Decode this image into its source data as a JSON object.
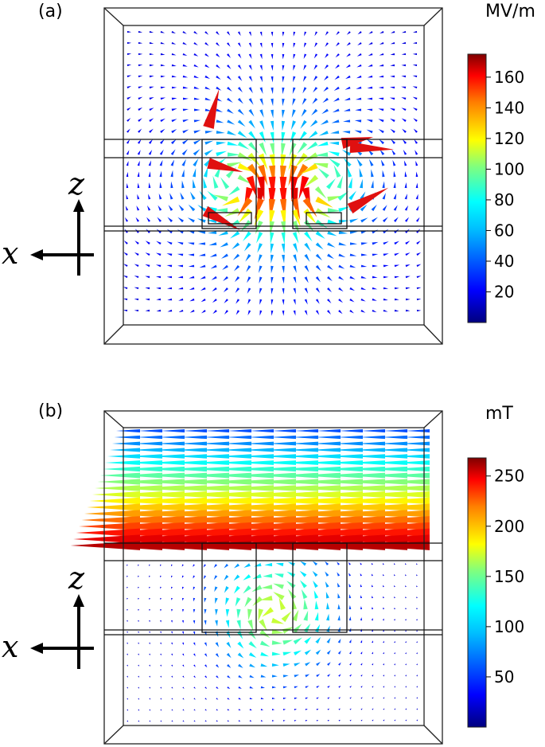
{
  "panel_a": {
    "label": "(a)",
    "unit": "MV/m",
    "colorbar_ticks": [
      "160",
      "140",
      "120",
      "100",
      "80",
      "60",
      "40",
      "20"
    ],
    "colorbar_range": [
      0,
      175
    ],
    "axis_vertical": "z",
    "axis_horizontal": "x"
  },
  "panel_b": {
    "label": "(b)",
    "unit": "mT",
    "colorbar_ticks": [
      "250",
      "200",
      "150",
      "100",
      "50"
    ],
    "colorbar_range": [
      0,
      268
    ],
    "axis_vertical": "z",
    "axis_horizontal": "x"
  },
  "colormap": [
    "#00007f",
    "#0000ff",
    "#007fff",
    "#00ffff",
    "#7fff7f",
    "#ffff00",
    "#ff7f00",
    "#ff0000",
    "#7f0000"
  ]
}
